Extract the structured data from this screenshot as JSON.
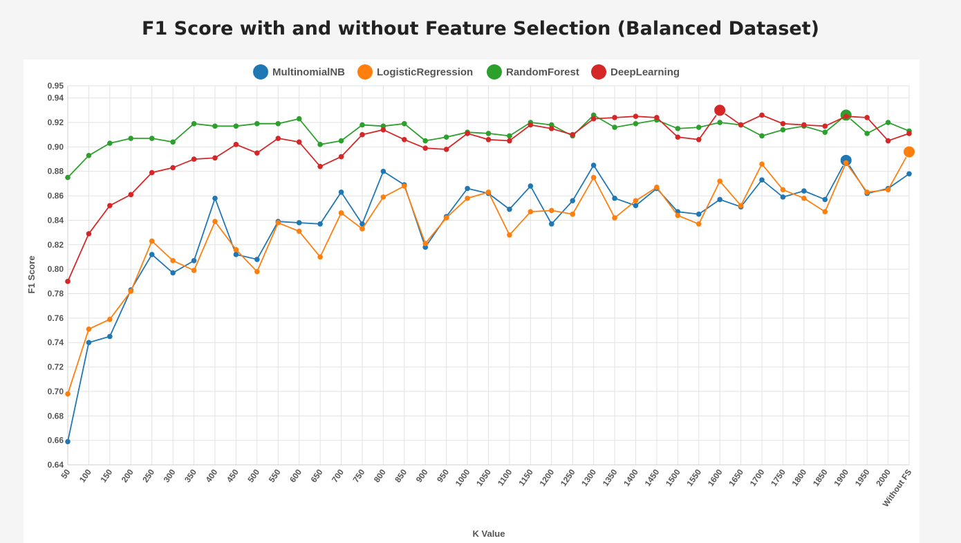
{
  "chart_data": {
    "type": "line",
    "title": "F1 Score with and without Feature Selection (Balanced Dataset)",
    "xlabel": "K Value",
    "ylabel": "F1 Score",
    "ylim": [
      0.64,
      0.95
    ],
    "yticks": [
      0.64,
      0.66,
      0.68,
      0.7,
      0.72,
      0.74,
      0.76,
      0.78,
      0.8,
      0.82,
      0.84,
      0.86,
      0.88,
      0.9,
      0.92,
      0.94,
      0.95
    ],
    "grid": true,
    "legend_position": "top-center",
    "categories": [
      "50",
      "100",
      "150",
      "200",
      "250",
      "300",
      "350",
      "400",
      "450",
      "500",
      "550",
      "600",
      "650",
      "700",
      "750",
      "800",
      "850",
      "900",
      "950",
      "1000",
      "1050",
      "1100",
      "1150",
      "1200",
      "1250",
      "1300",
      "1350",
      "1400",
      "1450",
      "1500",
      "1550",
      "1600",
      "1650",
      "1700",
      "1750",
      "1800",
      "1850",
      "1900",
      "1950",
      "2000",
      "Without FS"
    ],
    "series": [
      {
        "name": "MultinomialNB",
        "color": "#1f77b4",
        "highlight_index": 37,
        "values": [
          0.659,
          0.74,
          0.745,
          0.783,
          0.812,
          0.797,
          0.807,
          0.858,
          0.812,
          0.808,
          0.839,
          0.838,
          0.837,
          0.863,
          0.837,
          0.88,
          0.869,
          0.818,
          0.843,
          0.866,
          0.862,
          0.849,
          0.868,
          0.837,
          0.856,
          0.885,
          0.858,
          0.852,
          0.866,
          0.847,
          0.845,
          0.857,
          0.851,
          0.873,
          0.859,
          0.864,
          0.857,
          0.889,
          0.862,
          0.866,
          0.878
        ]
      },
      {
        "name": "LogisticRegression",
        "color": "#ff7f0e",
        "highlight_index": 40,
        "values": [
          0.698,
          0.751,
          0.759,
          0.782,
          0.823,
          0.807,
          0.799,
          0.839,
          0.816,
          0.798,
          0.838,
          0.831,
          0.81,
          0.846,
          0.833,
          0.859,
          0.868,
          0.821,
          0.842,
          0.858,
          0.863,
          0.828,
          0.847,
          0.848,
          0.845,
          0.875,
          0.842,
          0.856,
          0.867,
          0.844,
          0.837,
          0.872,
          0.852,
          0.886,
          0.865,
          0.858,
          0.847,
          0.887,
          0.863,
          0.865,
          0.896
        ]
      },
      {
        "name": "RandomForest",
        "color": "#2ca02c",
        "highlight_index": 37,
        "values": [
          0.875,
          0.893,
          0.903,
          0.907,
          0.907,
          0.904,
          0.919,
          0.917,
          0.917,
          0.919,
          0.919,
          0.923,
          0.902,
          0.905,
          0.918,
          0.917,
          0.919,
          0.905,
          0.908,
          0.912,
          0.911,
          0.909,
          0.92,
          0.918,
          0.909,
          0.926,
          0.916,
          0.919,
          0.922,
          0.915,
          0.916,
          0.92,
          0.918,
          0.909,
          0.914,
          0.917,
          0.912,
          0.926,
          0.911,
          0.92,
          0.913
        ]
      },
      {
        "name": "DeepLearning",
        "color": "#d62728",
        "highlight_index": 31,
        "values": [
          0.79,
          0.829,
          0.852,
          0.861,
          0.879,
          0.883,
          0.89,
          0.891,
          0.902,
          0.895,
          0.907,
          0.904,
          0.884,
          0.892,
          0.91,
          0.914,
          0.906,
          0.899,
          0.898,
          0.911,
          0.906,
          0.905,
          0.918,
          0.915,
          0.91,
          0.923,
          0.924,
          0.925,
          0.924,
          0.908,
          0.906,
          0.93,
          0.918,
          0.926,
          0.919,
          0.918,
          0.917,
          0.925,
          0.924,
          0.905,
          0.911
        ]
      }
    ]
  }
}
